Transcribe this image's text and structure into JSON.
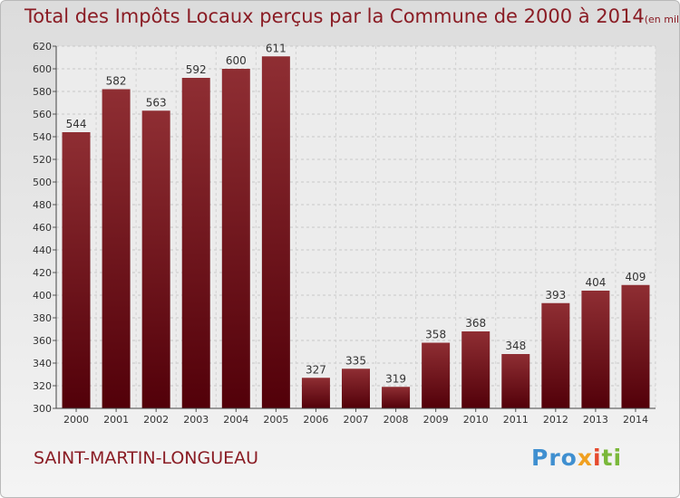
{
  "chart_data": {
    "type": "bar",
    "title": "Total des Impôts Locaux perçus par la Commune de 2000 à 2014",
    "title_unit": "(en milliers d'€)",
    "categories": [
      "2000",
      "2001",
      "2002",
      "2003",
      "2004",
      "2005",
      "2006",
      "2007",
      "2008",
      "2009",
      "2010",
      "2011",
      "2012",
      "2013",
      "2014"
    ],
    "values": [
      544,
      582,
      563,
      592,
      600,
      611,
      327,
      335,
      319,
      358,
      368,
      348,
      393,
      404,
      409
    ],
    "xlabel": "",
    "ylabel": "",
    "ylim": [
      300,
      620
    ],
    "yticks": [
      300,
      320,
      340,
      360,
      380,
      400,
      420,
      440,
      460,
      480,
      500,
      520,
      540,
      560,
      580,
      600,
      620
    ],
    "grid": true,
    "bar_color": "#7b1a20"
  },
  "commune": "SAINT-MARTIN-LONGUEAU",
  "logo": [
    "Pro",
    "x",
    "i",
    "ti"
  ]
}
